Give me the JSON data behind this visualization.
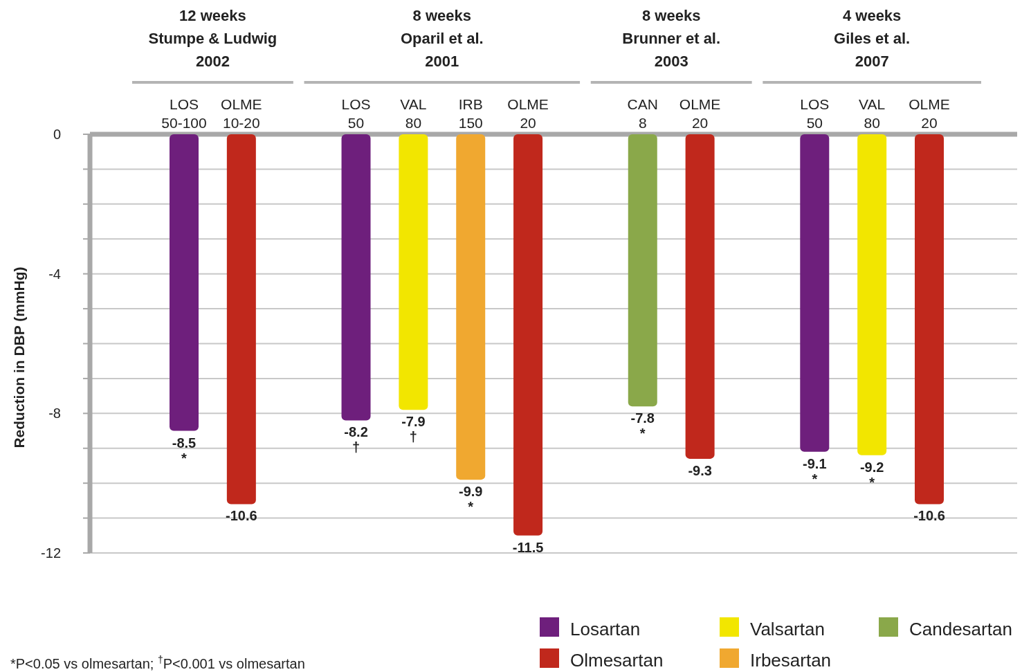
{
  "chart_data": {
    "type": "bar",
    "ylabel": "Reduction in DBP (mmHg)",
    "categories": [
      "LOS\n50-100",
      "OLME\n10-20",
      null,
      "LOS\n50",
      "VAL\n80",
      "IRB\n150",
      "OLME\n20",
      null,
      "CAN\n8",
      "OLME\n20",
      null,
      "LOS\n50",
      "VAL\n80",
      "OLME\n20"
    ],
    "series": [
      {
        "name": "Losartan",
        "color": "#6e1f7c",
        "values": [
          -8.5,
          null,
          null,
          -8.2,
          null,
          null,
          null,
          null,
          null,
          null,
          null,
          -9.1,
          null,
          null
        ],
        "value_labels": [
          "-8.5\n*",
          null,
          null,
          "-8.2\n†",
          null,
          null,
          null,
          null,
          null,
          null,
          null,
          "-9.1\n*",
          null,
          null
        ]
      },
      {
        "name": "Olmesartan",
        "color": "#c0281c",
        "values": [
          null,
          -10.6,
          null,
          null,
          null,
          null,
          -11.5,
          null,
          null,
          -9.3,
          null,
          null,
          null,
          -10.6
        ],
        "value_labels": [
          null,
          "-10.6",
          null,
          null,
          null,
          null,
          "-11.5",
          null,
          null,
          "-9.3",
          null,
          null,
          null,
          "-10.6"
        ]
      },
      {
        "name": "Valsartan",
        "color": "#f2e600",
        "values": [
          null,
          null,
          null,
          null,
          -7.9,
          null,
          null,
          null,
          null,
          null,
          null,
          null,
          -9.2,
          null
        ],
        "value_labels": [
          null,
          null,
          null,
          null,
          "-7.9\n†",
          null,
          null,
          null,
          null,
          null,
          null,
          null,
          "-9.2\n*",
          null
        ]
      },
      {
        "name": "Irbesartan",
        "color": "#f0a830",
        "values": [
          null,
          null,
          null,
          null,
          null,
          -9.9,
          null,
          null,
          null,
          null,
          null,
          null,
          null,
          null
        ],
        "value_labels": [
          null,
          null,
          null,
          null,
          null,
          "-9.9\n*",
          null,
          null,
          null,
          null,
          null,
          null,
          null,
          null
        ]
      },
      {
        "name": "Candesartan",
        "color": "#8aa84a",
        "values": [
          null,
          null,
          null,
          null,
          null,
          null,
          null,
          null,
          -7.8,
          null,
          null,
          null,
          null,
          null
        ],
        "value_labels": [
          null,
          null,
          null,
          null,
          null,
          null,
          null,
          null,
          "-7.8\n*",
          null,
          null,
          null,
          null,
          null
        ]
      }
    ],
    "ylim": [
      -12,
      0
    ],
    "yticks": [
      0,
      {
        "value": -1,
        "label": null
      },
      {
        "value": -2,
        "label": null
      },
      {
        "value": -3,
        "label": null
      },
      -4,
      {
        "value": -5,
        "label": null
      },
      {
        "value": -6,
        "label": null
      },
      {
        "value": -7,
        "label": null
      },
      -8,
      {
        "value": -9,
        "label": null
      },
      {
        "value": -10,
        "label": null
      },
      {
        "value": -11,
        "label": null
      },
      -12
    ],
    "grid": "y",
    "legend": "bottom right",
    "annotations": [
      "12 weeks\nStumpe & Ludwig\n2002",
      "8 weeks\nOparil et al.\n2001",
      "8 weeks\nBrunner et al.\n2003",
      "4 weeks\nGiles et al.\n2007",
      "*P<0.05 vs olmesartan; $^{†}$P<0.001 vs olmesartan"
    ]
  }
}
